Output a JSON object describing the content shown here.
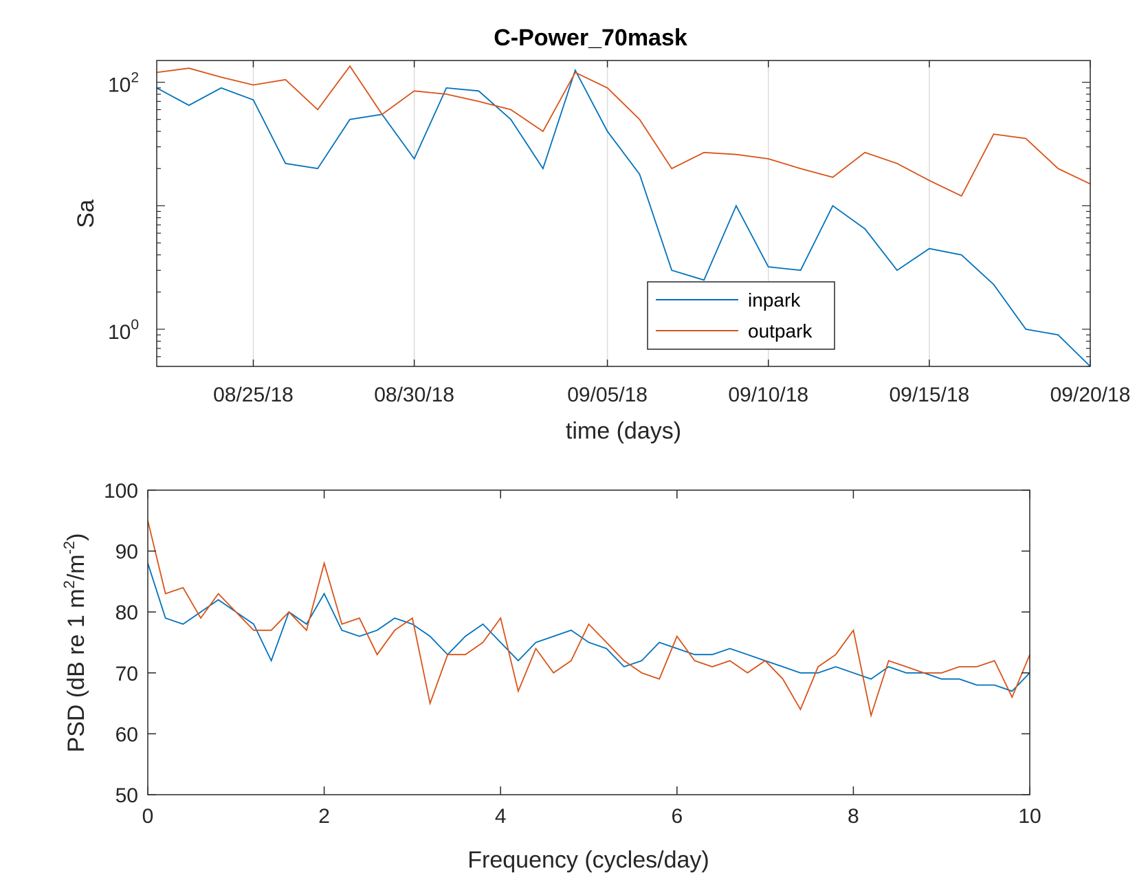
{
  "chart_data": [
    {
      "type": "line",
      "title": "C-Power_70mask",
      "xlabel": "time (days)",
      "ylabel": "Sa",
      "yscale": "log",
      "ylim": [
        0.5,
        150
      ],
      "xlim": [
        "2018-08-22",
        "2018-09-20"
      ],
      "grid": "x-major",
      "x_ticks": [
        "08/25/18",
        "08/30/18",
        "09/05/18",
        "09/10/18",
        "09/15/18",
        "09/20/18"
      ],
      "y_ticks": [
        {
          "base": "10",
          "exp": "0",
          "value": 1
        },
        {
          "base": "10",
          "exp": "2",
          "value": 100
        }
      ],
      "legend": {
        "position": "inside-lower-right",
        "entries": [
          "inpark",
          "outpark"
        ]
      },
      "x": [
        "2018-08-22",
        "2018-08-23",
        "2018-08-24",
        "2018-08-25",
        "2018-08-26",
        "2018-08-27",
        "2018-08-28",
        "2018-08-29",
        "2018-08-30",
        "2018-08-31",
        "2018-09-01",
        "2018-09-02",
        "2018-09-03",
        "2018-09-04",
        "2018-09-05",
        "2018-09-06",
        "2018-09-07",
        "2018-09-08",
        "2018-09-09",
        "2018-09-10",
        "2018-09-11",
        "2018-09-12",
        "2018-09-13",
        "2018-09-14",
        "2018-09-15",
        "2018-09-16",
        "2018-09-17",
        "2018-09-18",
        "2018-09-19",
        "2018-09-20"
      ],
      "series": [
        {
          "name": "inpark",
          "color": "#0072BD",
          "values": [
            90,
            65,
            90,
            72,
            22,
            20,
            50,
            55,
            24,
            90,
            85,
            50,
            20,
            125,
            40,
            18,
            3,
            2.5,
            10,
            3.2,
            3,
            10,
            6.5,
            3,
            4.5,
            4,
            2.3,
            1,
            0.9,
            0.5
          ]
        },
        {
          "name": "outpark",
          "color": "#D95319",
          "values": [
            120,
            130,
            110,
            95,
            105,
            60,
            135,
            55,
            85,
            80,
            70,
            60,
            40,
            120,
            90,
            50,
            20,
            27,
            26,
            24,
            20,
            17,
            27,
            22,
            16,
            12,
            38,
            35,
            20,
            15
          ]
        }
      ]
    },
    {
      "type": "line",
      "title": "",
      "xlabel": "Frequency (cycles/day)",
      "ylabel": "PSD (dB re 1 m",
      "ylabel_sup1": "2",
      "ylabel_mid": "/m",
      "ylabel_sup2": "-2",
      "ylabel_end": ")",
      "xlim": [
        0,
        10
      ],
      "ylim": [
        50,
        100
      ],
      "x_ticks": [
        0,
        2,
        4,
        6,
        8,
        10
      ],
      "y_ticks": [
        50,
        60,
        70,
        80,
        90,
        100
      ],
      "grid": "off",
      "x": [
        0,
        0.2,
        0.4,
        0.6,
        0.8,
        1.0,
        1.2,
        1.4,
        1.6,
        1.8,
        2.0,
        2.2,
        2.4,
        2.6,
        2.8,
        3.0,
        3.2,
        3.4,
        3.6,
        3.8,
        4.0,
        4.2,
        4.4,
        4.6,
        4.8,
        5.0,
        5.2,
        5.4,
        5.6,
        5.8,
        6.0,
        6.2,
        6.4,
        6.6,
        6.8,
        7.0,
        7.2,
        7.4,
        7.6,
        7.8,
        8.0,
        8.2,
        8.4,
        8.6,
        8.8,
        9.0,
        9.2,
        9.4,
        9.6,
        9.8,
        10.0
      ],
      "series": [
        {
          "name": "inpark",
          "color": "#0072BD",
          "values": [
            88,
            79,
            78,
            80,
            82,
            80,
            78,
            72,
            80,
            78,
            83,
            77,
            76,
            77,
            79,
            78,
            76,
            73,
            76,
            78,
            75,
            72,
            75,
            76,
            77,
            75,
            74,
            71,
            72,
            75,
            74,
            73,
            73,
            74,
            73,
            72,
            71,
            70,
            70,
            71,
            70,
            69,
            71,
            70,
            70,
            69,
            69,
            68,
            68,
            67,
            70
          ]
        },
        {
          "name": "outpark",
          "color": "#D95319",
          "values": [
            95,
            83,
            84,
            79,
            83,
            80,
            77,
            77,
            80,
            77,
            88,
            78,
            79,
            73,
            77,
            79,
            65,
            73,
            73,
            75,
            79,
            67,
            74,
            70,
            72,
            78,
            75,
            72,
            70,
            69,
            76,
            72,
            71,
            72,
            70,
            72,
            69,
            64,
            71,
            73,
            77,
            63,
            72,
            71,
            70,
            70,
            71,
            71,
            72,
            66,
            73
          ]
        }
      ]
    }
  ]
}
